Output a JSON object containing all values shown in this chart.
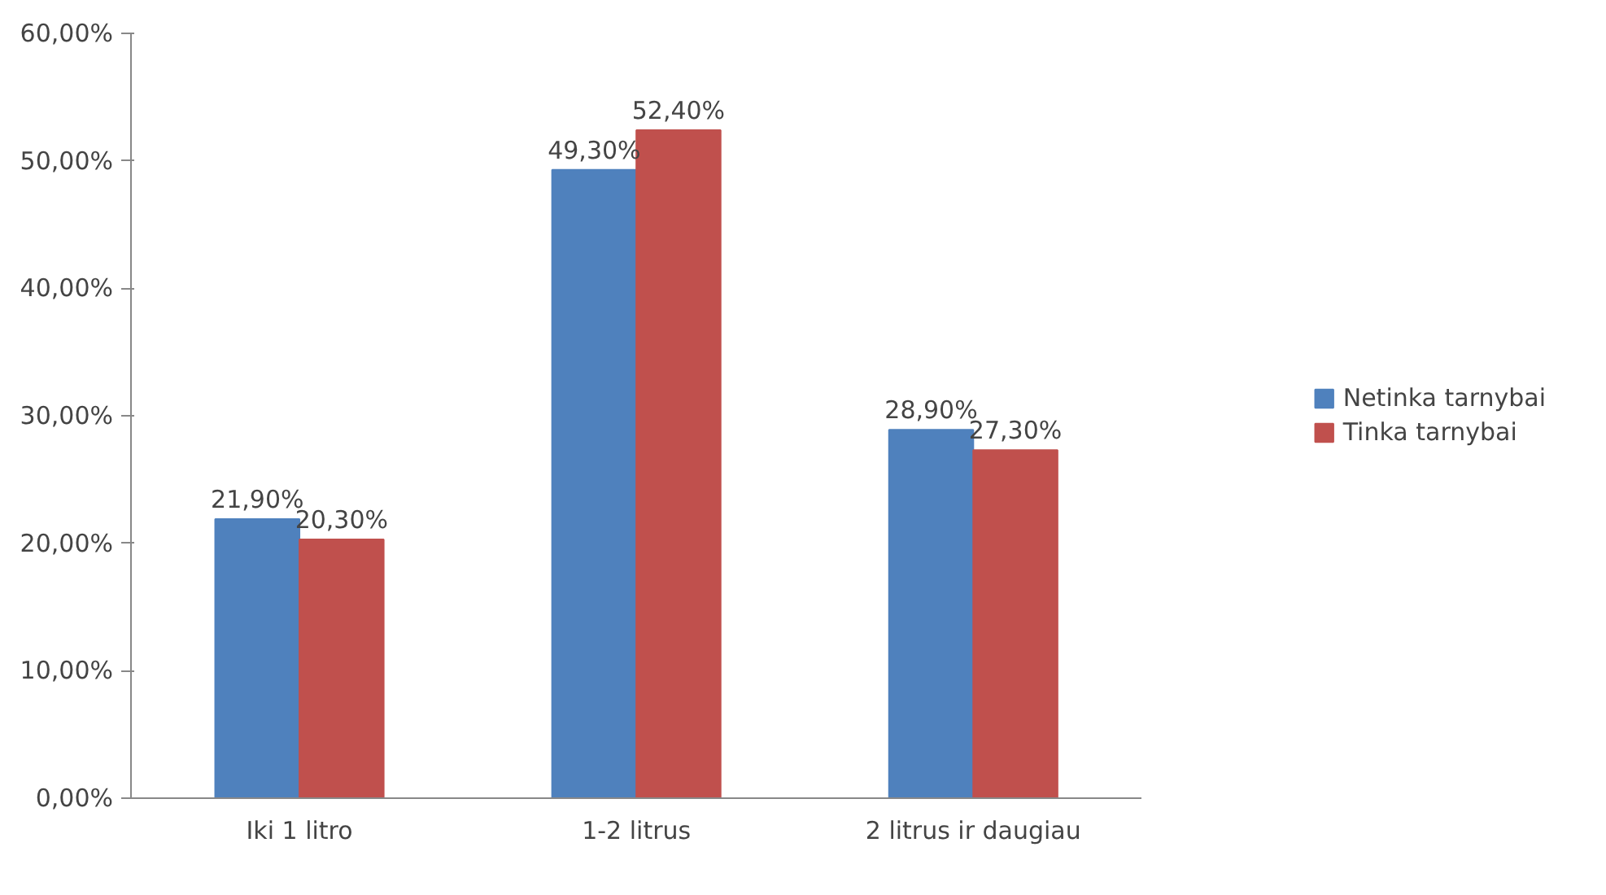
{
  "chart_data": {
    "type": "bar",
    "categories": [
      "Iki 1 litro",
      "1-2 litrus",
      "2 litrus ir daugiau"
    ],
    "series": [
      {
        "name": "Netinka tarnybai",
        "color": "#4f81bd",
        "values": [
          21.9,
          49.3,
          28.9
        ],
        "value_labels": [
          "21,90%",
          "49,30%",
          "28,90%"
        ]
      },
      {
        "name": "Tinka tarnybai",
        "color": "#c0504d",
        "values": [
          20.3,
          52.4,
          27.3
        ],
        "value_labels": [
          "20,30%",
          "52,40%",
          "27,30%"
        ]
      }
    ],
    "ylim": [
      0,
      60
    ],
    "yticks": [
      {
        "value": 0,
        "label": "0,00%"
      },
      {
        "value": 10,
        "label": "10,00%"
      },
      {
        "value": 20,
        "label": "20,00%"
      },
      {
        "value": 30,
        "label": "30,00%"
      },
      {
        "value": 40,
        "label": "40,00%"
      },
      {
        "value": 50,
        "label": "50,00%"
      },
      {
        "value": 60,
        "label": "60,00%"
      }
    ],
    "grid": false,
    "legend": "right"
  }
}
